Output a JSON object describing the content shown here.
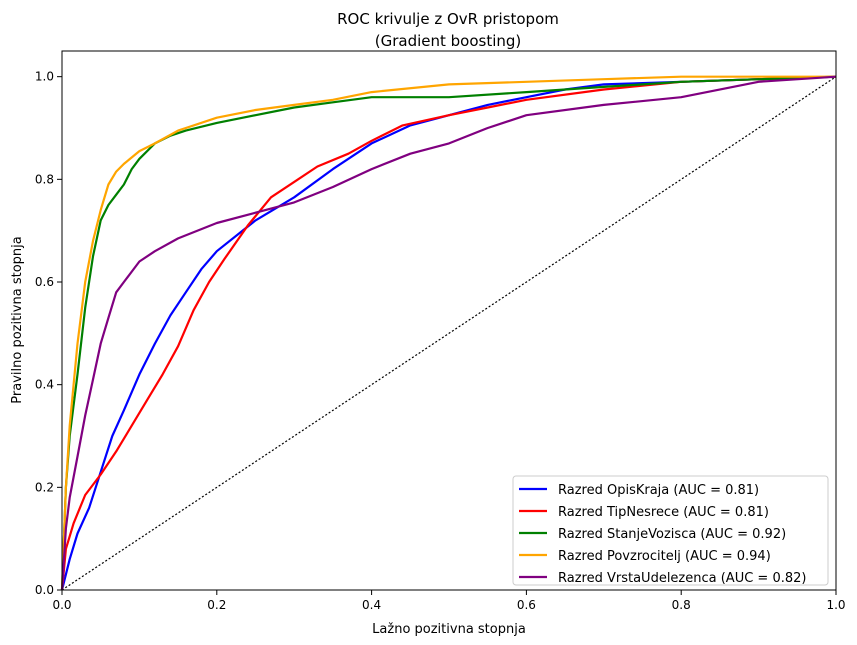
{
  "chart_data": {
    "type": "line",
    "title_line1": "ROC krivulje z OvR pristopom",
    "title_line2": "(Gradient boosting)",
    "xlabel": "Lažno pozitivna stopnja",
    "ylabel": "Pravilno pozitivna stopnja",
    "xlim": [
      0,
      1
    ],
    "ylim": [
      0,
      1.05
    ],
    "xticks": [
      0,
      0.2,
      0.4,
      0.6,
      0.8,
      1.0
    ],
    "xtick_labels": [
      "0.0",
      "0.2",
      "0.4",
      "0.6",
      "0.8",
      "1.0"
    ],
    "yticks": [
      0,
      0.2,
      0.4,
      0.6,
      0.8,
      1.0
    ],
    "ytick_labels": [
      "0.0",
      "0.2",
      "0.4",
      "0.6",
      "0.8",
      "1.0"
    ],
    "grid": false,
    "legend_position": "lower-right",
    "diagonal": {
      "style": "dotted",
      "color": "#000000"
    },
    "series": [
      {
        "name": "Razred OpisKraja (AUC = 0.81)",
        "color": "#0000ff",
        "x": [
          0,
          0.01,
          0.02,
          0.035,
          0.05,
          0.065,
          0.08,
          0.1,
          0.12,
          0.14,
          0.16,
          0.18,
          0.2,
          0.25,
          0.3,
          0.35,
          0.4,
          0.45,
          0.5,
          0.55,
          0.6,
          0.65,
          0.7,
          0.8,
          0.9,
          1.0
        ],
        "y": [
          0,
          0.06,
          0.11,
          0.16,
          0.23,
          0.3,
          0.35,
          0.42,
          0.48,
          0.535,
          0.58,
          0.625,
          0.66,
          0.72,
          0.765,
          0.82,
          0.87,
          0.905,
          0.925,
          0.945,
          0.96,
          0.975,
          0.985,
          0.99,
          0.995,
          1.0
        ]
      },
      {
        "name": "Razred TipNesrece (AUC = 0.81)",
        "color": "#ff0000",
        "x": [
          0,
          0.005,
          0.015,
          0.03,
          0.05,
          0.07,
          0.09,
          0.11,
          0.13,
          0.15,
          0.17,
          0.19,
          0.21,
          0.24,
          0.27,
          0.3,
          0.33,
          0.37,
          0.4,
          0.44,
          0.5,
          0.55,
          0.6,
          0.7,
          0.8,
          0.9,
          1.0
        ],
        "y": [
          0,
          0.08,
          0.13,
          0.185,
          0.225,
          0.27,
          0.32,
          0.37,
          0.42,
          0.475,
          0.545,
          0.6,
          0.645,
          0.71,
          0.765,
          0.795,
          0.825,
          0.85,
          0.875,
          0.905,
          0.925,
          0.94,
          0.955,
          0.975,
          0.99,
          0.995,
          1.0
        ]
      },
      {
        "name": "Razred StanjeVozisca (AUC = 0.92)",
        "color": "#008000",
        "x": [
          0,
          0.005,
          0.01,
          0.02,
          0.03,
          0.04,
          0.05,
          0.06,
          0.07,
          0.08,
          0.09,
          0.1,
          0.12,
          0.14,
          0.16,
          0.2,
          0.25,
          0.3,
          0.35,
          0.4,
          0.5,
          0.6,
          0.7,
          0.8,
          0.9,
          1.0
        ],
        "y": [
          0,
          0.2,
          0.3,
          0.42,
          0.55,
          0.65,
          0.72,
          0.75,
          0.77,
          0.79,
          0.82,
          0.84,
          0.87,
          0.885,
          0.895,
          0.91,
          0.925,
          0.94,
          0.95,
          0.96,
          0.96,
          0.97,
          0.98,
          0.99,
          0.995,
          1.0
        ]
      },
      {
        "name": "Razred Povzrocitelj (AUC = 0.94)",
        "color": "#ffa500",
        "x": [
          0,
          0.005,
          0.01,
          0.02,
          0.03,
          0.04,
          0.05,
          0.06,
          0.07,
          0.08,
          0.1,
          0.12,
          0.15,
          0.2,
          0.25,
          0.3,
          0.35,
          0.4,
          0.5,
          0.6,
          0.7,
          0.8,
          0.9,
          1.0
        ],
        "y": [
          0,
          0.2,
          0.32,
          0.48,
          0.6,
          0.68,
          0.74,
          0.79,
          0.815,
          0.83,
          0.855,
          0.87,
          0.895,
          0.92,
          0.935,
          0.945,
          0.955,
          0.97,
          0.985,
          0.99,
          0.995,
          1.0,
          1.0,
          1.0
        ]
      },
      {
        "name": "Razred VrstaUdelezenca (AUC = 0.82)",
        "color": "#800080",
        "x": [
          0,
          0.005,
          0.01,
          0.02,
          0.03,
          0.04,
          0.05,
          0.06,
          0.07,
          0.08,
          0.1,
          0.12,
          0.15,
          0.2,
          0.25,
          0.3,
          0.35,
          0.4,
          0.45,
          0.5,
          0.55,
          0.6,
          0.7,
          0.8,
          0.9,
          1.0
        ],
        "y": [
          0,
          0.12,
          0.18,
          0.26,
          0.34,
          0.41,
          0.48,
          0.53,
          0.58,
          0.6,
          0.64,
          0.66,
          0.685,
          0.715,
          0.735,
          0.755,
          0.785,
          0.82,
          0.85,
          0.87,
          0.9,
          0.925,
          0.945,
          0.96,
          0.99,
          1.0
        ]
      }
    ]
  }
}
